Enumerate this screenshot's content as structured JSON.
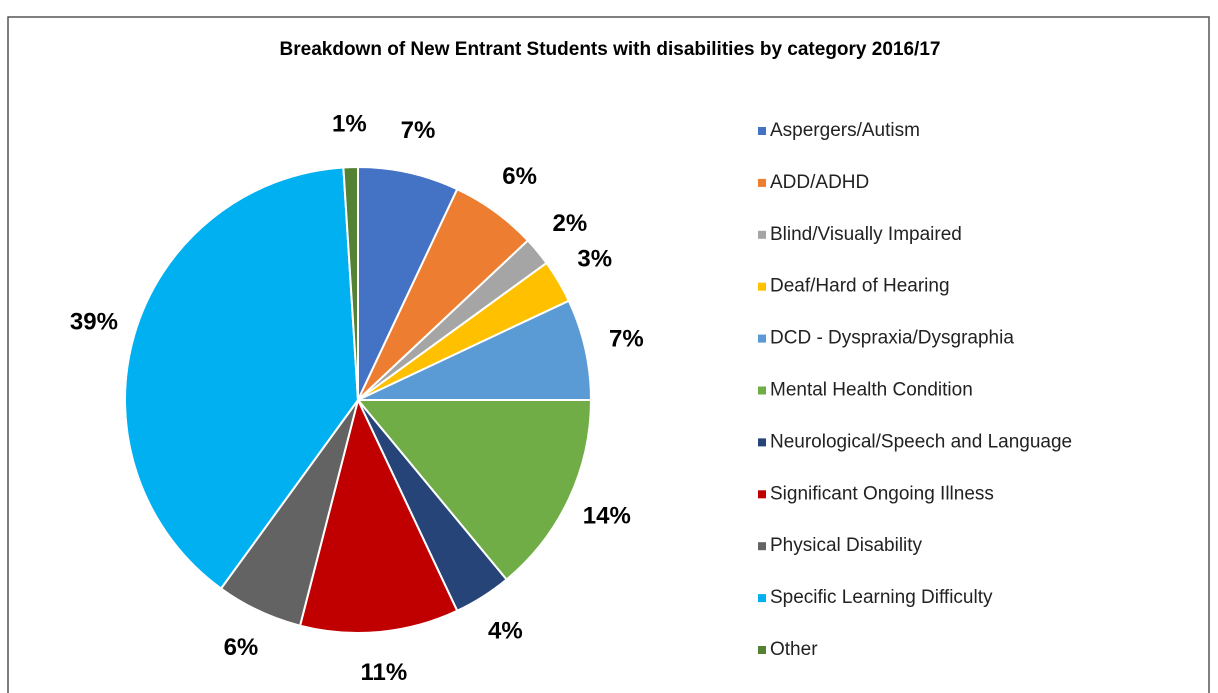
{
  "chart_data": {
    "type": "pie",
    "title": "Breakdown of New Entrant Students with disabilities by category 2016/17",
    "categories": [
      "Aspergers/Autism",
      "ADD/ADHD",
      "Blind/Visually Impaired",
      "Deaf/Hard of Hearing",
      "DCD - Dyspraxia/Dysgraphia",
      "Mental Health Condition",
      "Neurological/Speech and Language",
      "Significant Ongoing Illness",
      "Physical Disability",
      "Specific Learning Difficulty",
      "Other"
    ],
    "values": [
      7,
      6,
      2,
      3,
      7,
      14,
      4,
      11,
      6,
      39,
      1
    ],
    "value_labels": [
      "7%",
      "6%",
      "2%",
      "3%",
      "7%",
      "14%",
      "4%",
      "11%",
      "6%",
      "39%",
      "1%"
    ],
    "colors": [
      "#4472c4",
      "#ed7d31",
      "#a5a5a5",
      "#ffc000",
      "#5b9bd5",
      "#70ad47",
      "#264478",
      "#c00000",
      "#636363",
      "#00b0f0",
      "#548235"
    ],
    "legend": "right"
  }
}
